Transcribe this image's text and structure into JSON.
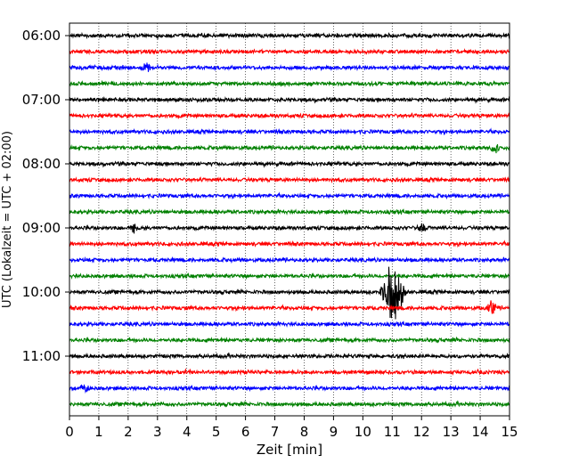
{
  "chart_data": {
    "type": "line",
    "title": "",
    "xlabel": "Zeit  [min]",
    "ylabel": "UTC (Lokalzeit = UTC + 02:00)",
    "xlim": [
      0,
      15
    ],
    "x_ticks": [
      0,
      1,
      2,
      3,
      4,
      5,
      6,
      7,
      8,
      9,
      10,
      11,
      12,
      13,
      14,
      15
    ],
    "x_tick_labels": [
      "0",
      "1",
      "2",
      "3",
      "4",
      "5",
      "6",
      "7",
      "8",
      "9",
      "10",
      "11",
      "12",
      "13",
      "14",
      "15"
    ],
    "grid": "vertical dotted",
    "trace_interval_min": 15,
    "first_trace": "06:00",
    "trace_count": 24,
    "y_tick_labels": [
      "06:00",
      "07:00",
      "08:00",
      "09:00",
      "10:00",
      "11:00"
    ],
    "trace_colors": [
      "#000000",
      "#ff0000",
      "#0000ff",
      "#008000"
    ],
    "events": [
      {
        "trace": 2,
        "x": 2.6,
        "amplitude": 0.45
      },
      {
        "trace": 7,
        "x": 14.5,
        "amplitude": 0.35
      },
      {
        "trace": 12,
        "x": 2.2,
        "amplitude": 0.35
      },
      {
        "trace": 12,
        "x": 12.0,
        "amplitude": 0.3
      },
      {
        "trace": 16,
        "x": 10.9,
        "amplitude": 1.45
      },
      {
        "trace": 16,
        "x": 11.15,
        "amplitude": 1.9
      },
      {
        "trace": 17,
        "x": 14.4,
        "amplitude": 0.55
      },
      {
        "trace": 22,
        "x": 0.5,
        "amplitude": 0.3
      }
    ]
  }
}
